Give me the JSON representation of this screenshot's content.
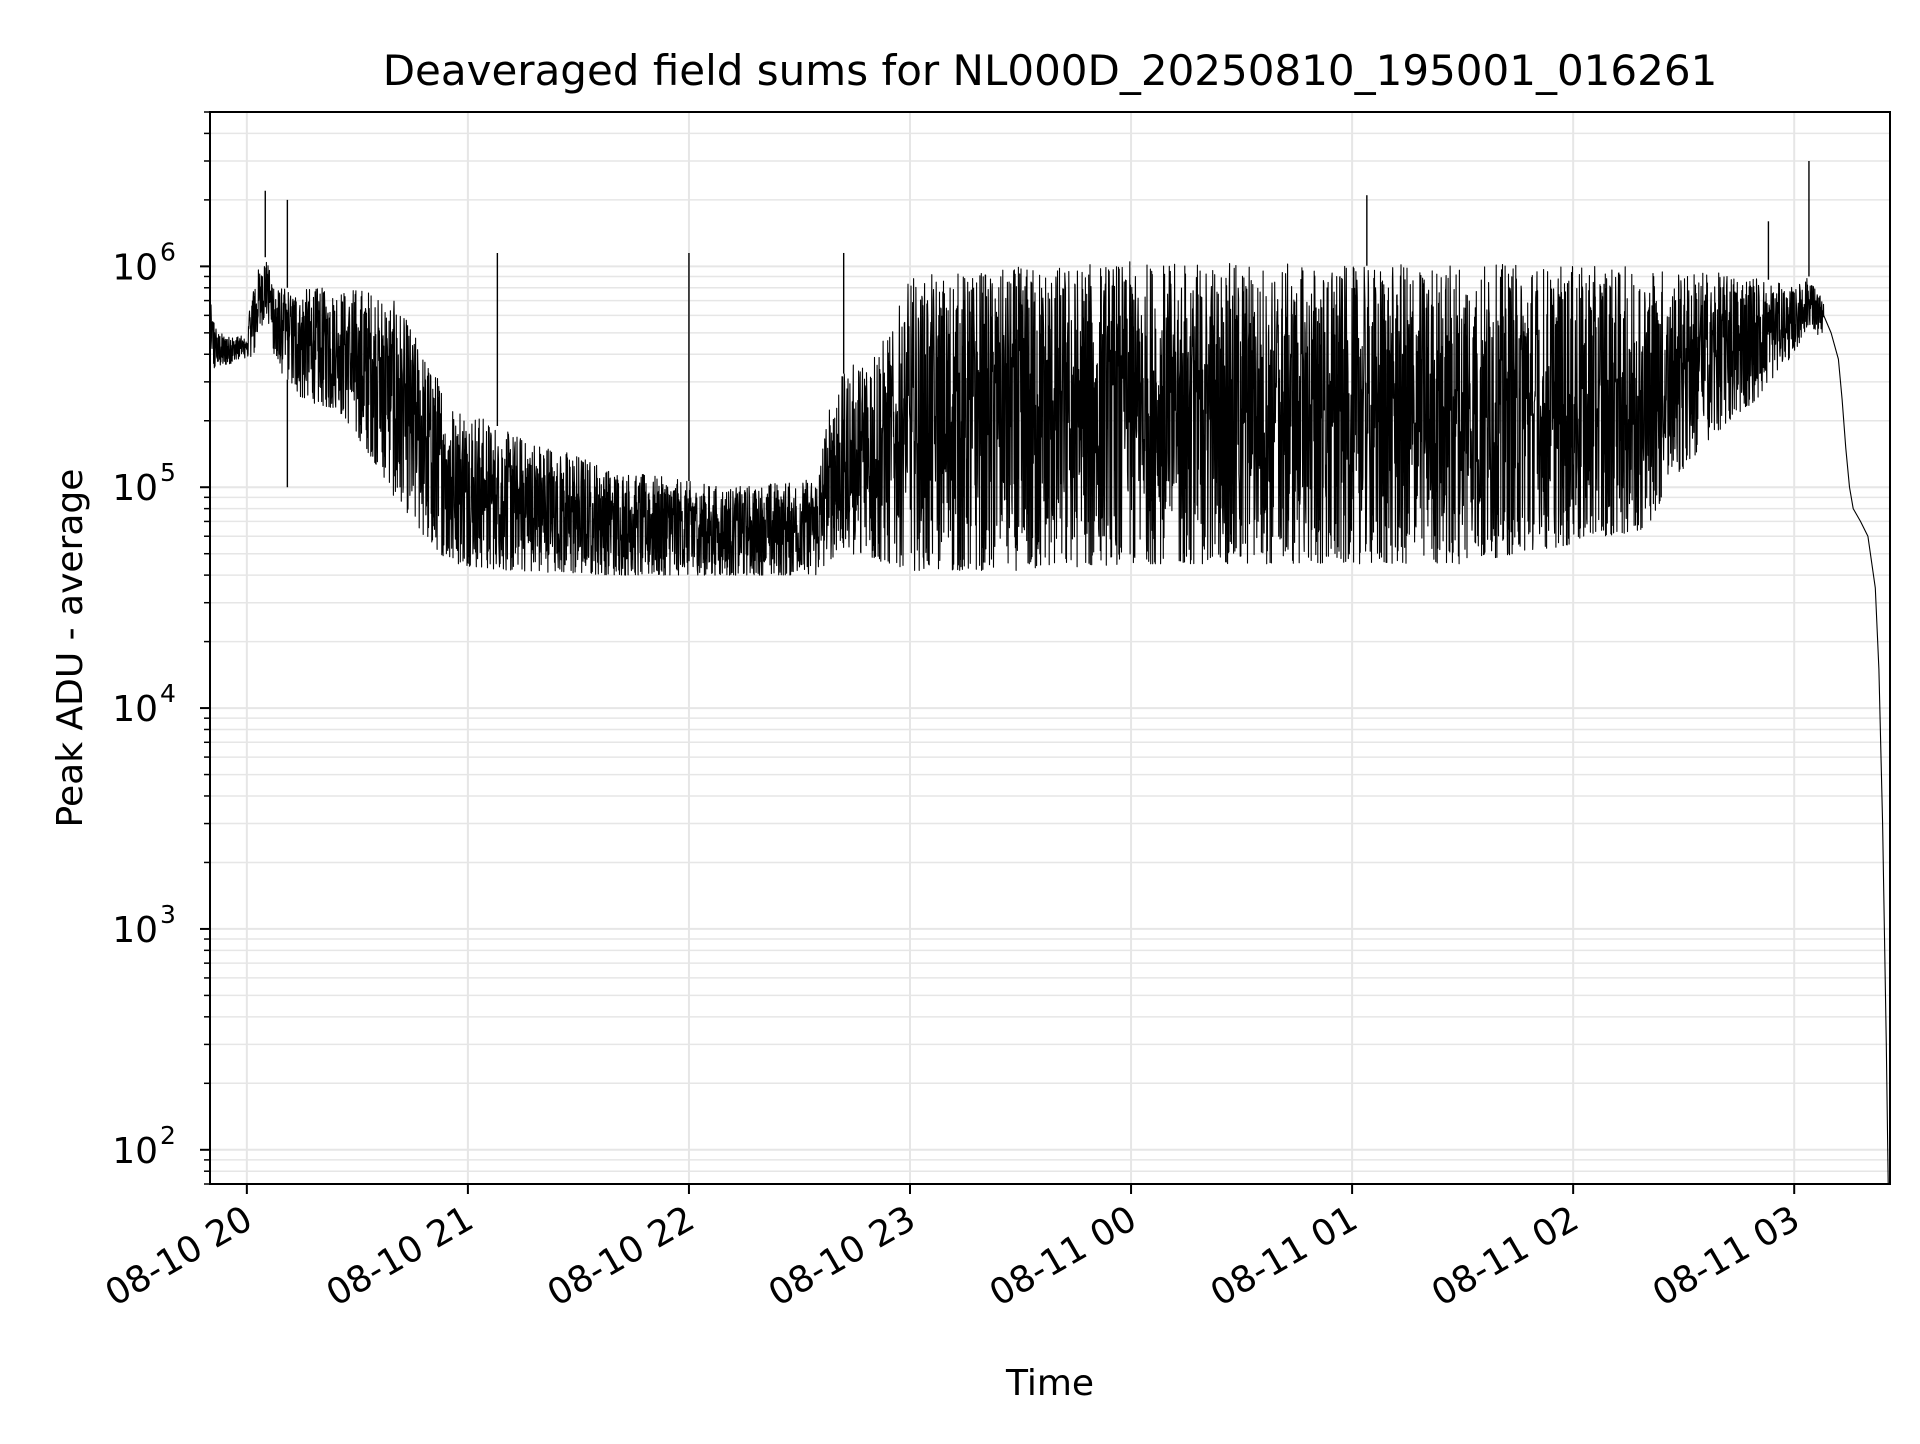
{
  "chart_data": {
    "type": "line",
    "title": "Deaveraged field sums for NL000D_20250810_195001_016261",
    "xlabel": "Time",
    "ylabel": "Peak ADU - average",
    "yscale": "log",
    "grid": true,
    "legend": "none",
    "line_color": "#000000",
    "grid_color": "#e6e6e6",
    "xlim": [
      "08-10 19:50",
      "08-11 03:26"
    ],
    "ylim": [
      70,
      5000000
    ],
    "xticks": [
      {
        "t": "08-10 20:00",
        "label": "08-10 20"
      },
      {
        "t": "08-10 21:00",
        "label": "08-10 21"
      },
      {
        "t": "08-10 22:00",
        "label": "08-10 22"
      },
      {
        "t": "08-10 23:00",
        "label": "08-10 23"
      },
      {
        "t": "08-11 00:00",
        "label": "08-11 00"
      },
      {
        "t": "08-11 01:00",
        "label": "08-11 01"
      },
      {
        "t": "08-11 02:00",
        "label": "08-11 02"
      },
      {
        "t": "08-11 03:00",
        "label": "08-11 03"
      }
    ],
    "yticks": [
      {
        "value": 100,
        "base": "10",
        "exp": "2"
      },
      {
        "value": 1000,
        "base": "10",
        "exp": "3"
      },
      {
        "value": 10000,
        "base": "10",
        "exp": "4"
      },
      {
        "value": 100000,
        "base": "10",
        "exp": "5"
      },
      {
        "value": 1000000,
        "base": "10",
        "exp": "6"
      }
    ],
    "series": [
      {
        "envelope": [
          {
            "t": "08-10 19:50",
            "lo": 320000,
            "hi": 700000
          },
          {
            "t": "08-10 19:52",
            "lo": 350000,
            "hi": 500000
          },
          {
            "t": "08-10 20:00",
            "lo": 380000,
            "hi": 480000
          },
          {
            "t": "08-10 20:02",
            "lo": 400000,
            "hi": 900000
          },
          {
            "t": "08-10 20:05",
            "lo": 600000,
            "hi": 1100000
          },
          {
            "t": "08-10 20:08",
            "lo": 350000,
            "hi": 800000
          },
          {
            "t": "08-10 20:15",
            "lo": 250000,
            "hi": 800000
          },
          {
            "t": "08-10 20:25",
            "lo": 220000,
            "hi": 800000
          },
          {
            "t": "08-10 20:32",
            "lo": 150000,
            "hi": 800000
          },
          {
            "t": "08-10 20:40",
            "lo": 90000,
            "hi": 700000
          },
          {
            "t": "08-10 20:48",
            "lo": 60000,
            "hi": 400000
          },
          {
            "t": "08-10 20:55",
            "lo": 45000,
            "hi": 250000
          },
          {
            "t": "08-10 21:10",
            "lo": 42000,
            "hi": 180000
          },
          {
            "t": "08-10 21:40",
            "lo": 40000,
            "hi": 120000
          },
          {
            "t": "08-10 22:10",
            "lo": 40000,
            "hi": 100000
          },
          {
            "t": "08-10 22:35",
            "lo": 40000,
            "hi": 110000
          },
          {
            "t": "08-10 22:40",
            "lo": 50000,
            "hi": 300000
          },
          {
            "t": "08-10 22:55",
            "lo": 45000,
            "hi": 500000
          },
          {
            "t": "08-10 23:00",
            "lo": 42000,
            "hi": 900000
          },
          {
            "t": "08-10 23:30",
            "lo": 42000,
            "hi": 1000000
          },
          {
            "t": "08-11 00:00",
            "lo": 45000,
            "hi": 1050000
          },
          {
            "t": "08-11 00:30",
            "lo": 45000,
            "hi": 1050000
          },
          {
            "t": "08-11 01:00",
            "lo": 45000,
            "hi": 1000000
          },
          {
            "t": "08-11 01:30",
            "lo": 45000,
            "hi": 1050000
          },
          {
            "t": "08-11 02:00",
            "lo": 55000,
            "hi": 1000000
          },
          {
            "t": "08-11 02:20",
            "lo": 65000,
            "hi": 1000000
          },
          {
            "t": "08-11 02:35",
            "lo": 150000,
            "hi": 950000
          },
          {
            "t": "08-11 02:50",
            "lo": 250000,
            "hi": 900000
          },
          {
            "t": "08-11 03:00",
            "lo": 400000,
            "hi": 800000
          },
          {
            "t": "08-11 03:04",
            "lo": 550000,
            "hi": 900000
          },
          {
            "t": "08-11 03:08",
            "lo": 450000,
            "hi": 700000
          }
        ],
        "path": [
          {
            "t": "08-11 03:08",
            "y": 600000
          },
          {
            "t": "08-11 03:10",
            "y": 500000
          },
          {
            "t": "08-11 03:12",
            "y": 380000
          },
          {
            "t": "08-11 03:13",
            "y": 250000
          },
          {
            "t": "08-11 03:14",
            "y": 150000
          },
          {
            "t": "08-11 03:15",
            "y": 100000
          },
          {
            "t": "08-11 03:16",
            "y": 80000
          },
          {
            "t": "08-11 03:18",
            "y": 70000
          },
          {
            "t": "08-11 03:20",
            "y": 60000
          },
          {
            "t": "08-11 03:22",
            "y": 35000
          },
          {
            "t": "08-11 03:23",
            "y": 15000
          },
          {
            "t": "08-11 03:24",
            "y": 3000
          },
          {
            "t": "08-11 03:25",
            "y": 300
          },
          {
            "t": "08-11 03:25:30",
            "y": 70
          }
        ],
        "spikes": [
          {
            "t": "08-10 20:05",
            "y": 2200000
          },
          {
            "t": "08-10 20:11",
            "y": 2000000
          },
          {
            "t": "08-10 20:11",
            "y": 100000
          },
          {
            "t": "08-10 21:08",
            "y": 1150000
          },
          {
            "t": "08-10 22:00",
            "y": 1150000
          },
          {
            "t": "08-10 22:42",
            "y": 1150000
          },
          {
            "t": "08-11 01:04",
            "y": 2100000
          },
          {
            "t": "08-11 02:53",
            "y": 1600000
          },
          {
            "t": "08-11 03:04",
            "y": 3000000
          }
        ]
      }
    ]
  }
}
